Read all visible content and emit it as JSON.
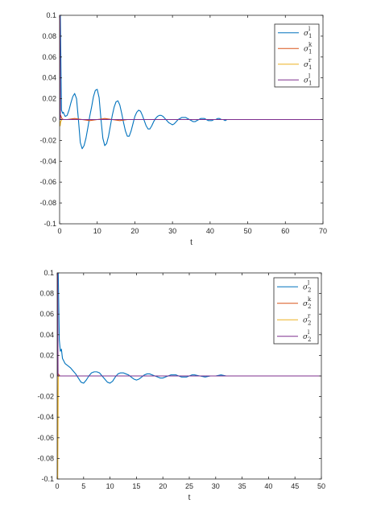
{
  "chart_data": [
    {
      "type": "line",
      "xlabel": "t",
      "xlim": [
        0,
        70
      ],
      "ylim": [
        -0.1,
        0.1
      ],
      "xticks": [
        "0",
        "10",
        "20",
        "30",
        "40",
        "50",
        "60",
        "70"
      ],
      "yticks": [
        "0.1",
        "0.08",
        "0.06",
        "0.04",
        "0.02",
        "0",
        "-0.02",
        "-0.04",
        "-0.06",
        "-0.08",
        "-0.1"
      ],
      "legend_position": "top-right",
      "series": [
        {
          "name": "σ",
          "sup": "l",
          "sub": "1",
          "color": "#0072BD",
          "x": [
            0,
            0.2,
            0.5,
            0.8,
            1.0,
            1.2,
            1.5,
            2.0,
            2.5,
            3.0,
            3.5,
            4.0,
            4.5,
            5.0,
            5.5,
            6.0,
            6.5,
            7.0,
            7.5,
            8.0,
            8.5,
            9.0,
            9.5,
            10.0,
            10.5,
            11.0,
            11.5,
            12.0,
            12.5,
            13.0,
            13.5,
            14.0,
            14.5,
            15.0,
            15.5,
            16.0,
            16.5,
            17.0,
            17.5,
            18.0,
            18.5,
            19.0,
            19.5,
            20.0,
            20.5,
            21.0,
            21.5,
            22.0,
            22.5,
            23.0,
            23.5,
            24.0,
            24.5,
            25.0,
            25.5,
            26.0,
            26.5,
            27.0,
            27.5,
            28.0,
            28.5,
            29.0,
            29.5,
            30.0,
            30.5,
            31.0,
            31.5,
            32.0,
            32.5,
            33.0,
            33.5,
            34.0,
            34.5,
            35.0,
            35.5,
            36.0,
            36.5,
            37.0,
            37.5,
            38.0,
            38.5,
            39.0,
            39.5,
            40.0,
            40.5,
            41.0,
            41.5,
            42.0,
            42.5,
            43.0,
            43.5,
            44.0,
            44.5,
            45.0,
            45.5,
            46.0,
            46.5,
            47.0,
            48.0,
            49.0,
            50.0,
            51.0,
            52.0,
            53.0,
            55.0,
            60.0,
            65.0,
            70.0
          ],
          "y": [
            0.1,
            0.1,
            0.009,
            0.006,
            0.007,
            0.005,
            0.003,
            0.004,
            0.009,
            0.016,
            0.022,
            0.025,
            0.02,
            0.0,
            -0.022,
            -0.028,
            -0.025,
            -0.018,
            -0.008,
            0.003,
            0.012,
            0.022,
            0.028,
            0.029,
            0.021,
            0.0,
            -0.018,
            -0.025,
            -0.023,
            -0.016,
            -0.006,
            0.004,
            0.012,
            0.017,
            0.018,
            0.014,
            0.006,
            -0.003,
            -0.011,
            -0.016,
            -0.016,
            -0.011,
            -0.004,
            0.003,
            0.007,
            0.009,
            0.008,
            0.004,
            -0.001,
            -0.006,
            -0.009,
            -0.009,
            -0.006,
            -0.002,
            0.001,
            0.003,
            0.004,
            0.004,
            0.003,
            0.001,
            -0.001,
            -0.003,
            -0.004,
            -0.005,
            -0.004,
            -0.002,
            0.0,
            0.001,
            0.002,
            0.002,
            0.002,
            0.001,
            0.0,
            -0.001,
            -0.002,
            -0.002,
            -0.001,
            0.0,
            0.001,
            0.001,
            0.001,
            0.0,
            -0.001,
            -0.001,
            -0.001,
            0.0,
            0.0,
            0.001,
            0.001,
            0.0,
            0.0,
            -0.001,
            0.0,
            0.0,
            0.0,
            0.0,
            0.0,
            0.0,
            0.0,
            0.0,
            0.0,
            0.0,
            0.0,
            0.0,
            0.0,
            0.0,
            0.0,
            0.0
          ]
        },
        {
          "name": "σ",
          "sup": "k",
          "sub": "1",
          "color": "#D95319",
          "x": [
            0,
            0.3,
            0.6,
            1.0,
            2.0,
            4.0,
            6.0,
            8.0,
            10.0,
            12.0,
            14.0,
            16.0,
            18.0,
            20.0,
            22.0,
            25.0,
            30.0,
            40.0,
            70.0
          ],
          "y": [
            0.0,
            0.004,
            0.001,
            0.0,
            0.0,
            0.001,
            0.0,
            -0.001,
            0.0,
            0.001,
            0.0,
            -0.001,
            0.0,
            0.0,
            0.0,
            0.0,
            0.0,
            0.0,
            0.0
          ]
        },
        {
          "name": "σ",
          "sup": "r",
          "sub": "1",
          "color": "#EDB120",
          "x": [
            0,
            0.15,
            0.3,
            0.6,
            1.0,
            70.0
          ],
          "y": [
            0.0,
            -0.006,
            -0.002,
            0.0,
            0.0,
            0.0
          ]
        },
        {
          "name": "σ",
          "sup": "l",
          "sub": "1",
          "color": "#7E2F8E",
          "x": [
            0,
            0.1,
            0.2,
            0.4,
            0.8,
            70.0
          ],
          "y": [
            0.0,
            0.1,
            0.0,
            0.0,
            0.0,
            0.0
          ]
        }
      ]
    },
    {
      "type": "line",
      "xlabel": "t",
      "xlim": [
        0,
        50
      ],
      "ylim": [
        -0.1,
        0.1
      ],
      "xticks": [
        "0",
        "5",
        "10",
        "15",
        "20",
        "25",
        "30",
        "35",
        "40",
        "45",
        "50"
      ],
      "yticks": [
        "0.1",
        "0.08",
        "0.06",
        "0.04",
        "0.02",
        "0",
        "-0.02",
        "-0.04",
        "-0.06",
        "-0.08",
        "-0.1"
      ],
      "legend_position": "top-right",
      "series": [
        {
          "name": "σ",
          "sup": "l",
          "sub": "2",
          "color": "#0072BD",
          "x": [
            0,
            0.2,
            0.4,
            0.6,
            0.8,
            1.0,
            1.5,
            2.0,
            2.5,
            3.0,
            3.5,
            4.0,
            4.5,
            5.0,
            5.5,
            6.0,
            6.5,
            7.0,
            7.5,
            8.0,
            8.5,
            9.0,
            9.5,
            10.0,
            10.5,
            11.0,
            11.5,
            12.0,
            12.5,
            13.0,
            13.5,
            14.0,
            14.5,
            15.0,
            15.5,
            16.0,
            16.5,
            17.0,
            17.5,
            18.0,
            18.5,
            19.0,
            19.5,
            20.0,
            20.5,
            21.0,
            21.5,
            22.0,
            22.5,
            23.0,
            23.5,
            24.0,
            24.5,
            25.0,
            25.5,
            26.0,
            27.0,
            28.0,
            29.0,
            30.0,
            31.0,
            32.0,
            33.0,
            34.0,
            35.0,
            36.0,
            37.0,
            38.0,
            40.0,
            45.0,
            50.0
          ],
          "y": [
            0.1,
            0.1,
            0.035,
            0.024,
            0.026,
            0.017,
            0.012,
            0.01,
            0.008,
            0.005,
            0.002,
            -0.002,
            -0.006,
            -0.007,
            -0.004,
            0.0,
            0.003,
            0.004,
            0.004,
            0.003,
            0.0,
            -0.003,
            -0.006,
            -0.007,
            -0.005,
            -0.001,
            0.002,
            0.003,
            0.003,
            0.002,
            0.001,
            -0.001,
            -0.003,
            -0.004,
            -0.003,
            -0.001,
            0.001,
            0.002,
            0.002,
            0.001,
            0.0,
            -0.001,
            -0.002,
            -0.002,
            -0.001,
            0.0,
            0.001,
            0.001,
            0.001,
            0.0,
            -0.001,
            -0.001,
            -0.001,
            0.0,
            0.001,
            0.001,
            0.0,
            -0.001,
            0.0,
            0.0,
            0.001,
            0.0,
            0.0,
            0.0,
            0.0,
            0.0,
            0.0,
            0.0,
            0.0,
            0.0,
            0.0
          ]
        },
        {
          "name": "σ",
          "sup": "k",
          "sub": "2",
          "color": "#D95319",
          "x": [
            0,
            0.2,
            0.5,
            1.0,
            50.0
          ],
          "y": [
            0.0,
            0.002,
            0.0,
            0.0,
            0.0
          ]
        },
        {
          "name": "σ",
          "sup": "r",
          "sub": "2",
          "color": "#EDB120",
          "x": [
            0,
            0.1,
            0.2,
            0.3,
            50.0
          ],
          "y": [
            0.0,
            -0.1,
            0.0,
            0.0,
            0.0
          ]
        },
        {
          "name": "σ",
          "sup": "l",
          "sub": "2",
          "color": "#7E2F8E",
          "x": [
            0,
            0.08,
            0.16,
            0.3,
            50.0
          ],
          "y": [
            0.0,
            0.1,
            0.0,
            0.0,
            0.0
          ]
        }
      ]
    }
  ]
}
